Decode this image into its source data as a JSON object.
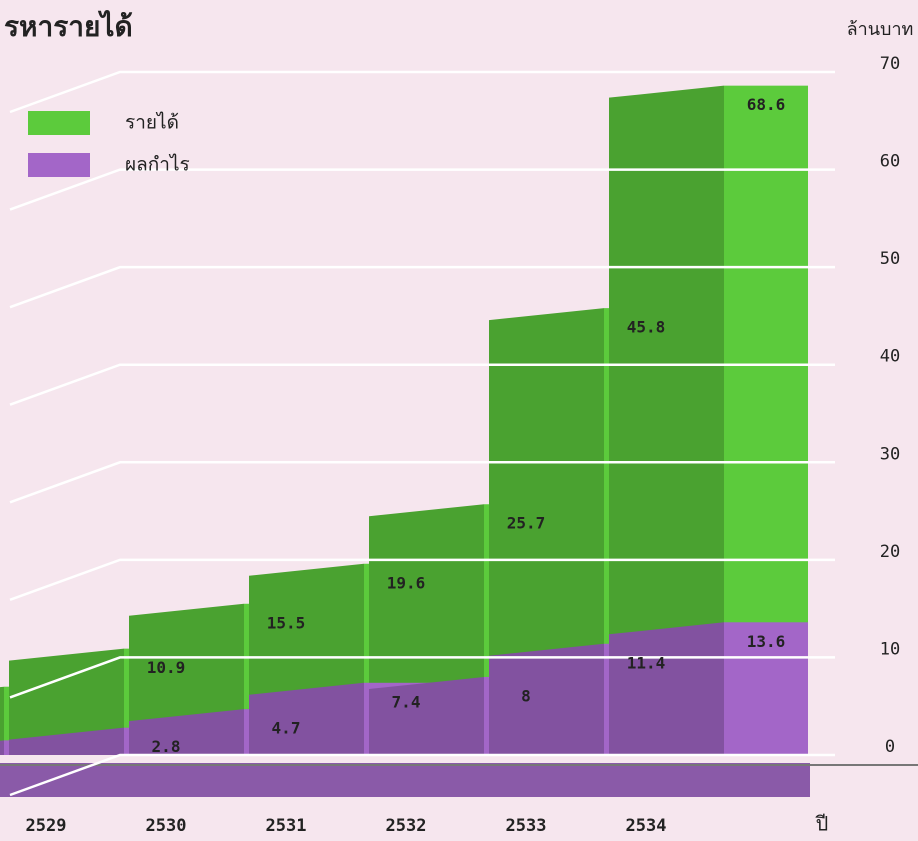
{
  "chart_data": {
    "type": "bar3d",
    "title": "รหารายได้",
    "y_axis_label": "ล้านบาท",
    "x_axis_label": "ปี",
    "categories": [
      "2529",
      "2530",
      "2531",
      "2532",
      "2533",
      "2534",
      null
    ],
    "series": [
      {
        "name": "รายได้",
        "color": "#5ccb3c",
        "values": [
          7,
          10.9,
          15.5,
          19.6,
          25.7,
          45.8,
          68.6
        ]
      },
      {
        "name": "ผลกำไร",
        "color": "#a366c8",
        "values": [
          1.5,
          2.8,
          4.7,
          7.4,
          8.0,
          11.4,
          13.6
        ]
      }
    ],
    "ylim": [
      0,
      70
    ],
    "yticks": [
      0,
      10,
      20,
      30,
      40,
      50,
      60,
      70
    ],
    "grid": true,
    "legend": "top-left"
  }
}
